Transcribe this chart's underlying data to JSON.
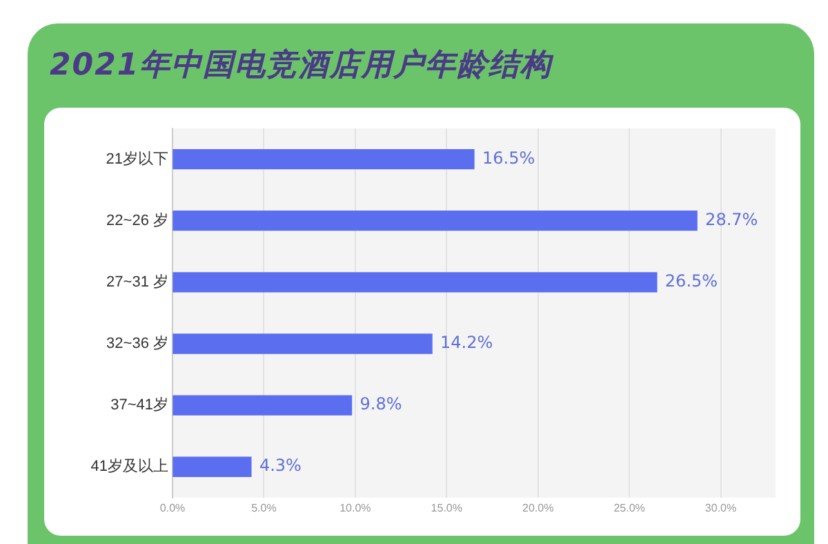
{
  "chart_data": {
    "type": "bar",
    "orientation": "horizontal",
    "title": "2021年中国电竞酒店用户年龄结构",
    "categories": [
      "21岁以下",
      "22~26 岁",
      "27~31 岁",
      "32~36 岁",
      "37~41岁",
      "41岁及以上"
    ],
    "values": [
      16.5,
      28.7,
      26.5,
      14.2,
      9.8,
      4.3
    ],
    "value_labels": [
      "16.5%",
      "28.7%",
      "26.5%",
      "14.2%",
      "9.8%",
      "4.3%"
    ],
    "color": "#5b6ef0",
    "xlim": [
      0,
      33
    ],
    "xticks": [
      {
        "value": 0,
        "label": "0.0%"
      },
      {
        "value": 5,
        "label": "5.0%"
      },
      {
        "value": 10,
        "label": "10.0%"
      },
      {
        "value": 15,
        "label": "15.0%"
      },
      {
        "value": 20,
        "label": "20.0%"
      },
      {
        "value": 25,
        "label": "25.0%"
      },
      {
        "value": 30,
        "label": "30.0%"
      }
    ],
    "grid": "x",
    "legend": false
  }
}
